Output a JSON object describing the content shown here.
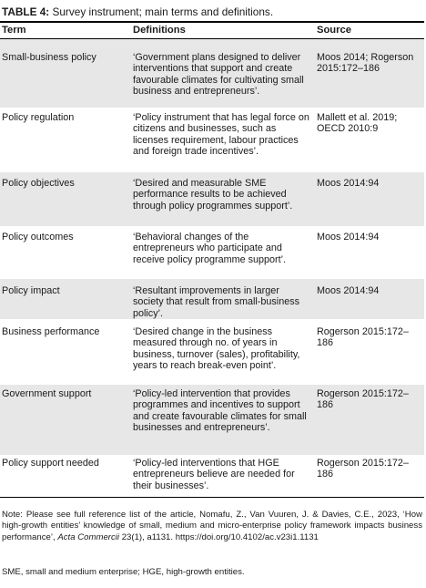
{
  "caption": {
    "label": "TABLE 4:",
    "text": " Survey instrument; main terms and definitions."
  },
  "headers": {
    "term": "Term",
    "definitions": "Definitions",
    "source": "Source"
  },
  "rows": [
    {
      "term": "Small-business policy",
      "definition": "‘Government plans designed to deliver interventions that support and create favourable climates for cultivating small business and entrepreneurs’.",
      "source": "Moos 2014; Rogerson 2015:172–186"
    },
    {
      "term": "Policy regulation",
      "definition": "‘Policy instrument that has legal force on citizens and businesses, such as licenses requirement, labour practices and foreign trade incentives’.",
      "source": "Mallett et al. 2019; OECD 2010:9"
    },
    {
      "term": "Policy objectives",
      "definition": "‘Desired and measurable SME performance results to be achieved through policy programmes support’.",
      "source": "Moos 2014:94"
    },
    {
      "term": "Policy outcomes",
      "definition": "‘Behavioral changes of the entrepreneurs who participate and receive policy programme support’.",
      "source": "Moos 2014:94"
    },
    {
      "term": "Policy impact",
      "definition": "‘Resultant improvements in larger society that result from small-business policy’.",
      "source": "Moos 2014:94"
    },
    {
      "term": "Business performance",
      "definition": "‘Desired change in the business measured through no. of years in business, turnover (sales), profitability, years to reach break-even point’.",
      "source": "Rogerson 2015:172–186"
    },
    {
      "term": "Government support",
      "definition": "‘Policy-led intervention that provides programmes and incentives to support and create favourable climates for small businesses and entrepreneurs’.",
      "source": "Rogerson 2015:172–186"
    },
    {
      "term": "Policy support needed",
      "definition": "‘Policy-led interventions that HGE entrepreneurs believe are needed for their businesses’.",
      "source": "Rogerson 2015:172–186"
    }
  ],
  "note": {
    "before": "Note: Please see full reference list of the article, Nomafu, Z., Van Vuuren, J. & Davies, C.E., 2023, ‘How high-growth entities’ knowledge of small, medium and micro-enterprise policy framework impacts business performance’, ",
    "journal": "Acta Commercii",
    "after": " 23(1), a1131. https://doi.org/10.4102/ac.v23i1.1131"
  },
  "abbreviations": "SME, small and medium enterprise; HGE, high-growth entities."
}
